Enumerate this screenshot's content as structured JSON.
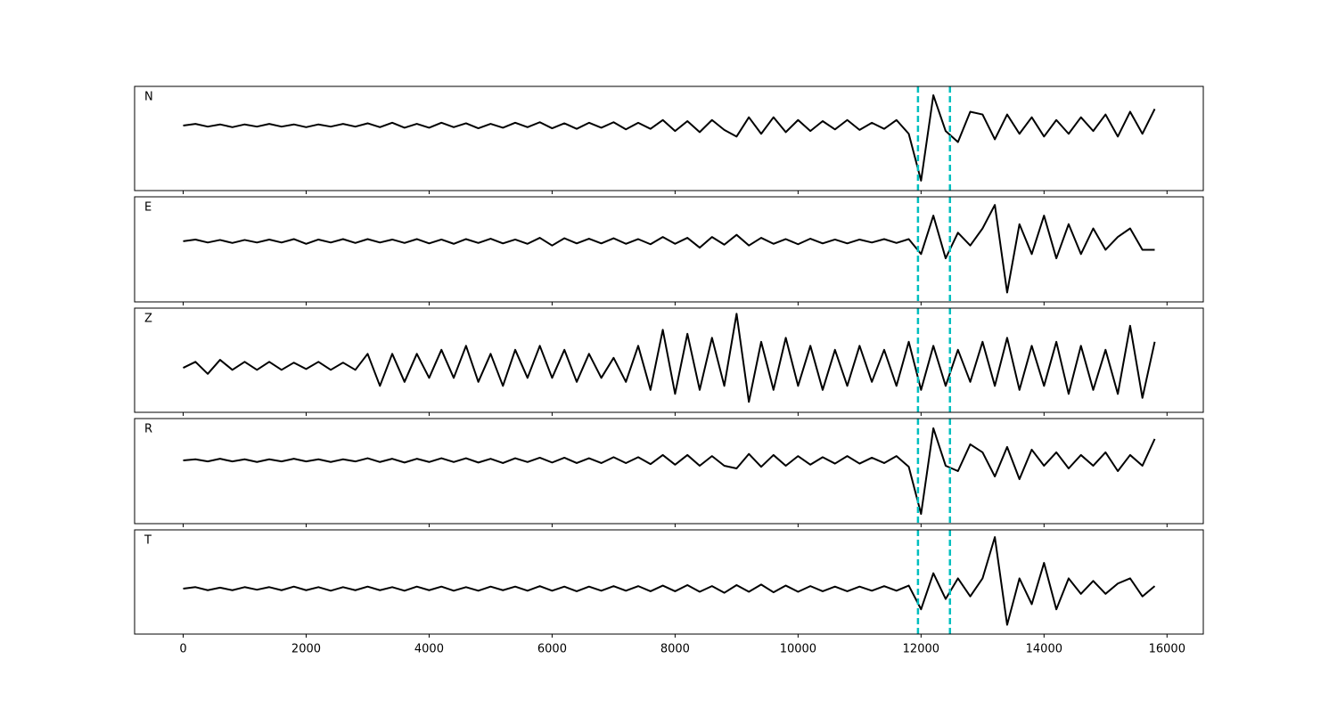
{
  "chart_data": {
    "type": "line",
    "x": [
      0,
      200,
      400,
      600,
      800,
      1000,
      1200,
      1400,
      1600,
      1800,
      2000,
      2200,
      2400,
      2600,
      2800,
      3000,
      3200,
      3400,
      3600,
      3800,
      4000,
      4200,
      4400,
      4600,
      4800,
      5000,
      5200,
      5400,
      5600,
      5800,
      6000,
      6200,
      6400,
      6600,
      6800,
      7000,
      7200,
      7400,
      7600,
      7800,
      8000,
      8200,
      8400,
      8600,
      8800,
      9000,
      9200,
      9400,
      9600,
      9800,
      10000,
      10200,
      10400,
      10600,
      10800,
      11000,
      11200,
      11400,
      11600,
      11800,
      12000,
      12200,
      12400,
      12600,
      12800,
      13000,
      13200,
      13400,
      13600,
      13800,
      14000,
      14200,
      14400,
      14600,
      14800,
      15000,
      15200,
      15400,
      15600,
      15800
    ],
    "xlim": [
      -790,
      16590
    ],
    "xticks": [
      0,
      2000,
      4000,
      6000,
      8000,
      10000,
      12000,
      14000,
      16000
    ],
    "vlines": [
      11950,
      12470
    ],
    "vline_color": "#00bfbf",
    "series": [
      {
        "name": "N",
        "color": "#000000",
        "ylim": [
          -1.18,
          0.71
        ],
        "values": [
          0,
          0.03,
          -0.02,
          0.02,
          -0.03,
          0.02,
          -0.02,
          0.03,
          -0.02,
          0.02,
          -0.03,
          0.02,
          -0.02,
          0.03,
          -0.02,
          0.04,
          -0.03,
          0.05,
          -0.04,
          0.03,
          -0.04,
          0.05,
          -0.03,
          0.04,
          -0.05,
          0.03,
          -0.04,
          0.05,
          -0.03,
          0.06,
          -0.05,
          0.04,
          -0.06,
          0.05,
          -0.04,
          0.06,
          -0.07,
          0.05,
          -0.06,
          0.1,
          -0.1,
          0.08,
          -0.12,
          0.1,
          -0.08,
          -0.2,
          0.15,
          -0.15,
          0.15,
          -0.12,
          0.1,
          -0.1,
          0.08,
          -0.07,
          0.1,
          -0.08,
          0.05,
          -0.06,
          0.1,
          -0.15,
          -1.0,
          0.55,
          -0.1,
          -0.3,
          0.25,
          0.2,
          -0.25,
          0.2,
          -0.15,
          0.15,
          -0.2,
          0.1,
          -0.15,
          0.15,
          -0.1,
          0.2,
          -0.2,
          0.25,
          -0.15,
          0.3
        ]
      },
      {
        "name": "E",
        "color": "#000000",
        "ylim": [
          -1.42,
          1.04
        ],
        "values": [
          0,
          0.04,
          -0.03,
          0.03,
          -0.04,
          0.03,
          -0.03,
          0.04,
          -0.03,
          0.05,
          -0.06,
          0.04,
          -0.03,
          0.05,
          -0.04,
          0.05,
          -0.03,
          0.04,
          -0.04,
          0.05,
          -0.05,
          0.04,
          -0.06,
          0.05,
          -0.04,
          0.06,
          -0.05,
          0.04,
          -0.06,
          0.08,
          -0.1,
          0.07,
          -0.05,
          0.06,
          -0.05,
          0.07,
          -0.06,
          0.05,
          -0.07,
          0.1,
          -0.06,
          0.08,
          -0.15,
          0.1,
          -0.08,
          0.15,
          -0.1,
          0.08,
          -0.06,
          0.05,
          -0.07,
          0.06,
          -0.05,
          0.04,
          -0.05,
          0.04,
          -0.03,
          0.05,
          -0.04,
          0.05,
          -0.3,
          0.6,
          -0.4,
          0.2,
          -0.1,
          0.3,
          0.85,
          -1.2,
          0.4,
          -0.3,
          0.6,
          -0.4,
          0.4,
          -0.3,
          0.3,
          -0.2,
          0.1,
          0.3,
          -0.2,
          -0.2
        ]
      },
      {
        "name": "Z",
        "color": "#000000",
        "ylim": [
          -1.16,
          1.44
        ],
        "values": [
          -0.05,
          0.1,
          -0.2,
          0.15,
          -0.1,
          0.1,
          -0.1,
          0.1,
          -0.1,
          0.08,
          -0.08,
          0.1,
          -0.1,
          0.08,
          -0.1,
          0.3,
          -0.5,
          0.3,
          -0.4,
          0.3,
          -0.3,
          0.4,
          -0.3,
          0.5,
          -0.4,
          0.3,
          -0.5,
          0.4,
          -0.3,
          0.5,
          -0.3,
          0.4,
          -0.4,
          0.3,
          -0.3,
          0.2,
          -0.4,
          0.5,
          -0.6,
          0.9,
          -0.7,
          0.8,
          -0.6,
          0.7,
          -0.5,
          1.3,
          -0.9,
          0.6,
          -0.6,
          0.7,
          -0.5,
          0.5,
          -0.6,
          0.4,
          -0.5,
          0.5,
          -0.4,
          0.4,
          -0.5,
          0.6,
          -0.6,
          0.5,
          -0.5,
          0.4,
          -0.4,
          0.6,
          -0.5,
          0.7,
          -0.6,
          0.5,
          -0.5,
          0.6,
          -0.7,
          0.5,
          -0.6,
          0.4,
          -0.7,
          1.0,
          -0.8,
          0.6
        ]
      },
      {
        "name": "R",
        "color": "#000000",
        "ylim": [
          -1.18,
          0.78
        ],
        "values": [
          0,
          0.02,
          -0.02,
          0.03,
          -0.02,
          0.02,
          -0.03,
          0.02,
          -0.02,
          0.03,
          -0.02,
          0.02,
          -0.03,
          0.02,
          -0.02,
          0.04,
          -0.03,
          0.03,
          -0.04,
          0.03,
          -0.03,
          0.04,
          -0.03,
          0.04,
          -0.04,
          0.03,
          -0.05,
          0.04,
          -0.03,
          0.05,
          -0.04,
          0.05,
          -0.05,
          0.04,
          -0.05,
          0.06,
          -0.05,
          0.06,
          -0.07,
          0.1,
          -0.08,
          0.1,
          -0.1,
          0.08,
          -0.1,
          -0.15,
          0.12,
          -0.12,
          0.1,
          -0.1,
          0.08,
          -0.08,
          0.06,
          -0.06,
          0.08,
          -0.06,
          0.05,
          -0.05,
          0.08,
          -0.12,
          -1.0,
          0.6,
          -0.1,
          -0.2,
          0.3,
          0.15,
          -0.3,
          0.25,
          -0.35,
          0.2,
          -0.1,
          0.15,
          -0.15,
          0.1,
          -0.1,
          0.15,
          -0.2,
          0.1,
          -0.1,
          0.4
        ]
      },
      {
        "name": "T",
        "color": "#000000",
        "ylim": [
          -0.88,
          1.14
        ],
        "values": [
          0,
          0.03,
          -0.03,
          0.02,
          -0.03,
          0.03,
          -0.02,
          0.03,
          -0.03,
          0.04,
          -0.03,
          0.03,
          -0.04,
          0.03,
          -0.03,
          0.04,
          -0.03,
          0.03,
          -0.04,
          0.04,
          -0.03,
          0.04,
          -0.04,
          0.03,
          -0.04,
          0.04,
          -0.03,
          0.04,
          -0.04,
          0.05,
          -0.04,
          0.04,
          -0.05,
          0.04,
          -0.04,
          0.05,
          -0.04,
          0.05,
          -0.05,
          0.06,
          -0.05,
          0.07,
          -0.06,
          0.05,
          -0.08,
          0.07,
          -0.06,
          0.08,
          -0.07,
          0.06,
          -0.06,
          0.05,
          -0.05,
          0.04,
          -0.05,
          0.04,
          -0.04,
          0.05,
          -0.04,
          0.06,
          -0.4,
          0.3,
          -0.2,
          0.2,
          -0.15,
          0.2,
          1.0,
          -0.7,
          0.2,
          -0.3,
          0.5,
          -0.4,
          0.2,
          -0.1,
          0.15,
          -0.1,
          0.1,
          0.2,
          -0.15,
          0.05
        ]
      }
    ]
  }
}
